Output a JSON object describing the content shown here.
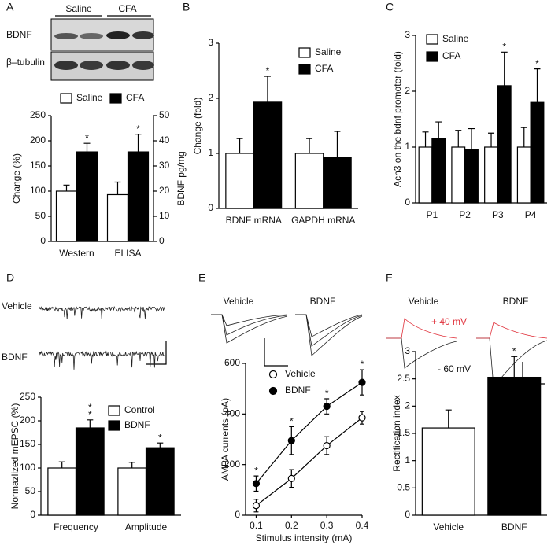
{
  "chart_data": [
    {
      "type": "bar",
      "label": "A",
      "image_labels": [
        "Saline",
        "CFA",
        "BDNF",
        "β–tubulin"
      ],
      "categories": [
        "Western",
        "ELISA"
      ],
      "series": [
        {
          "name": "Saline",
          "color": "#ffffff",
          "values": [
            100,
            93
          ],
          "errors": [
            12,
            25
          ],
          "markers": [
            null,
            null
          ]
        },
        {
          "name": "CFA",
          "color": "#000000",
          "values": [
            178,
            178
          ],
          "errors": [
            17,
            35
          ],
          "markers": [
            "*",
            "*"
          ]
        }
      ],
      "ylabel": "Change (%)",
      "ylim": [
        0,
        250
      ],
      "yticks": [
        0,
        50,
        100,
        150,
        200,
        250
      ],
      "y2label": "BDNF pg/mg",
      "y2lim": [
        0,
        50
      ],
      "y2ticks": [
        0,
        10,
        20,
        30,
        40,
        50
      ],
      "legend": "top"
    },
    {
      "type": "bar",
      "label": "B",
      "categories": [
        "BDNF mRNA",
        "GAPDH mRNA"
      ],
      "series": [
        {
          "name": "Saline",
          "color": "#ffffff",
          "values": [
            1.0,
            1.0
          ],
          "errors": [
            0.27,
            0.27
          ],
          "markers": [
            null,
            null
          ]
        },
        {
          "name": "CFA",
          "color": "#000000",
          "values": [
            1.93,
            0.93
          ],
          "errors": [
            0.47,
            0.47
          ],
          "markers": [
            "*",
            null
          ]
        }
      ],
      "ylabel": "Change (fold)",
      "ylim": [
        0,
        3
      ],
      "yticks": [
        0,
        1,
        2,
        3
      ],
      "legend": "upper right"
    },
    {
      "type": "bar",
      "label": "C",
      "categories": [
        "P1",
        "P2",
        "P3",
        "P4"
      ],
      "series": [
        {
          "name": "Saline",
          "color": "#ffffff",
          "values": [
            1.0,
            1.0,
            1.0,
            1.0
          ],
          "errors": [
            0.27,
            0.3,
            0.25,
            0.35
          ],
          "markers": [
            null,
            null,
            null,
            null
          ]
        },
        {
          "name": "CFA",
          "color": "#000000",
          "values": [
            1.15,
            0.95,
            2.1,
            1.8
          ],
          "errors": [
            0.3,
            0.38,
            0.6,
            0.6
          ],
          "markers": [
            null,
            null,
            "*",
            "*"
          ]
        }
      ],
      "ylabel": "Ach3 on the bdnf promoter (fold)",
      "ylim": [
        0,
        3
      ],
      "yticks": [
        0,
        1,
        2,
        3
      ],
      "legend": "upper left"
    },
    {
      "type": "bar",
      "label": "D",
      "image_labels": [
        "Vehicle",
        "BDNF"
      ],
      "categories": [
        "Frequency",
        "Amplitude"
      ],
      "series": [
        {
          "name": "Control",
          "color": "#ffffff",
          "values": [
            100,
            100
          ],
          "errors": [
            13,
            12
          ],
          "markers": [
            null,
            null
          ]
        },
        {
          "name": "BDNF",
          "color": "#000000",
          "values": [
            185,
            143
          ],
          "errors": [
            17,
            10
          ],
          "markers": [
            [
              "*",
              "*"
            ],
            "*"
          ]
        }
      ],
      "ylabel": "Normazlized mEPSC (%)",
      "ylim": [
        0,
        250
      ],
      "yticks": [
        0,
        50,
        100,
        150,
        200,
        250
      ],
      "legend": "upper right"
    },
    {
      "type": "line",
      "label": "E",
      "image_labels": [
        "Vehicle",
        "BDNF"
      ],
      "x": [
        0.1,
        0.2,
        0.3,
        0.4
      ],
      "series": [
        {
          "name": "Vehicle",
          "color": "#ffffff",
          "values": [
            38,
            145,
            275,
            385
          ],
          "errors": [
            25,
            35,
            35,
            25
          ],
          "markers": [
            null,
            null,
            null,
            null
          ]
        },
        {
          "name": "BDNF",
          "color": "#000000",
          "values": [
            125,
            295,
            430,
            525
          ],
          "errors": [
            30,
            55,
            30,
            50
          ],
          "markers": [
            "*",
            "*",
            "*",
            "*"
          ]
        }
      ],
      "xlabel": "Stimulus intensity (mA)",
      "xlim": [
        0.07,
        0.4
      ],
      "xticks": [
        0.1,
        0.2,
        0.3,
        0.4
      ],
      "ylabel": "AMPA currents (pA)",
      "ylim": [
        0,
        600
      ],
      "yticks": [
        0,
        200,
        400,
        600
      ],
      "legend": "upper left"
    },
    {
      "type": "bar",
      "label": "F",
      "image_labels": [
        "Vehicle",
        "BDNF",
        "+ 40 mV",
        "- 60 mV"
      ],
      "categories": [
        "Vehicle",
        "BDNF"
      ],
      "series": [
        {
          "colors": [
            "#ffffff",
            "#000000"
          ],
          "values": [
            1.6,
            2.53
          ],
          "errors": [
            0.33,
            0.38
          ],
          "markers": [
            null,
            "*"
          ]
        }
      ],
      "ylabel": "Rectification index",
      "ylim": [
        0,
        3
      ],
      "yticks": [
        0,
        0.5,
        1,
        1.5,
        2,
        2.5,
        3
      ]
    }
  ]
}
